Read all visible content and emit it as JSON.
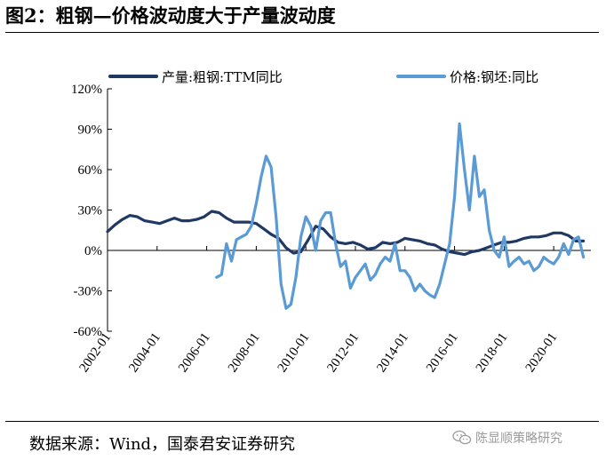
{
  "header": {
    "title": "图2：粗钢—价格波动度大于产量波动度"
  },
  "footer": {
    "source": "数据来源：Wind，国泰君安证券研究",
    "watermark": "陈显顺策略研究",
    "watermark_icon": "wechat-icon"
  },
  "chart_data": {
    "type": "line",
    "title": "图2：粗钢—价格波动度大于产量波动度",
    "xlabel": "",
    "ylabel": "",
    "xlim": [
      2002.0,
      2021.5
    ],
    "ylim": [
      -60,
      120
    ],
    "y_ticks": [
      -60,
      -30,
      0,
      30,
      60,
      90,
      120
    ],
    "y_tick_labels": [
      "-60%",
      "-30%",
      "0%",
      "30%",
      "60%",
      "90%",
      "120%"
    ],
    "x_tick_values": [
      2002,
      2004,
      2006,
      2008,
      2010,
      2012,
      2014,
      2016,
      2018,
      2020
    ],
    "x_tick_labels": [
      "2002-01",
      "2004-01",
      "2006-01",
      "2008-01",
      "2010-01",
      "2012-01",
      "2014-01",
      "2016-01",
      "2018-01",
      "2020-01"
    ],
    "grid": false,
    "legend_position": "top",
    "series": [
      {
        "name": "产量:粗钢:TTM同比",
        "color": "#1f3864",
        "x": [
          2002.0,
          2002.3,
          2002.6,
          2002.9,
          2003.2,
          2003.5,
          2003.8,
          2004.1,
          2004.4,
          2004.7,
          2005.0,
          2005.3,
          2005.6,
          2005.9,
          2006.2,
          2006.5,
          2006.8,
          2007.1,
          2007.4,
          2007.7,
          2008.0,
          2008.3,
          2008.6,
          2008.9,
          2009.2,
          2009.5,
          2009.8,
          2010.1,
          2010.4,
          2010.7,
          2011.0,
          2011.3,
          2011.6,
          2011.9,
          2012.2,
          2012.5,
          2012.8,
          2013.1,
          2013.4,
          2013.7,
          2014.0,
          2014.3,
          2014.6,
          2014.9,
          2015.2,
          2015.5,
          2015.8,
          2016.1,
          2016.4,
          2016.7,
          2017.0,
          2017.3,
          2017.6,
          2017.9,
          2018.2,
          2018.5,
          2018.8,
          2019.1,
          2019.4,
          2019.7,
          2020.0,
          2020.3,
          2020.6,
          2020.9,
          2021.2
        ],
        "values": [
          14,
          19,
          23,
          26,
          25,
          22,
          21,
          20,
          22,
          24,
          22,
          22,
          23,
          25,
          29,
          28,
          24,
          21,
          21,
          21,
          20,
          16,
          12,
          9,
          2,
          -2,
          -1,
          8,
          18,
          16,
          10,
          6,
          5,
          6,
          4,
          1,
          2,
          6,
          5,
          6,
          9,
          8,
          7,
          5,
          4,
          1,
          -1,
          -2,
          -3,
          -1,
          0,
          2,
          4,
          6,
          6,
          7,
          9,
          10,
          10,
          11,
          13,
          13,
          11,
          7,
          7
        ]
      },
      {
        "name": "价格:钢坯:同比",
        "color": "#5b9bd5",
        "x": [
          2006.4,
          2006.6,
          2006.8,
          2007.0,
          2007.2,
          2007.4,
          2007.6,
          2007.8,
          2008.0,
          2008.2,
          2008.4,
          2008.6,
          2008.8,
          2009.0,
          2009.2,
          2009.4,
          2009.6,
          2009.8,
          2010.0,
          2010.2,
          2010.4,
          2010.6,
          2010.8,
          2011.0,
          2011.2,
          2011.4,
          2011.6,
          2011.8,
          2012.0,
          2012.2,
          2012.4,
          2012.6,
          2012.8,
          2013.0,
          2013.2,
          2013.4,
          2013.6,
          2013.8,
          2014.0,
          2014.2,
          2014.4,
          2014.6,
          2014.8,
          2015.0,
          2015.2,
          2015.4,
          2015.6,
          2015.8,
          2016.0,
          2016.2,
          2016.4,
          2016.6,
          2016.8,
          2017.0,
          2017.2,
          2017.4,
          2017.6,
          2017.8,
          2018.0,
          2018.2,
          2018.4,
          2018.6,
          2018.8,
          2019.0,
          2019.2,
          2019.4,
          2019.6,
          2019.8,
          2020.0,
          2020.2,
          2020.4,
          2020.6,
          2020.8,
          2021.0,
          2021.2
        ],
        "values": [
          -20,
          -18,
          5,
          -8,
          8,
          10,
          12,
          18,
          35,
          55,
          70,
          62,
          25,
          -25,
          -43,
          -40,
          -20,
          10,
          25,
          18,
          0,
          22,
          28,
          28,
          5,
          -12,
          -8,
          -28,
          -20,
          -15,
          -10,
          -22,
          -18,
          -10,
          -5,
          -8,
          5,
          -15,
          -15,
          -20,
          -30,
          -25,
          -30,
          -33,
          -35,
          -25,
          -10,
          5,
          40,
          94,
          60,
          30,
          70,
          40,
          45,
          15,
          0,
          -5,
          10,
          -12,
          -8,
          -5,
          -10,
          -8,
          -15,
          -12,
          -5,
          -8,
          -10,
          -5,
          5,
          -3,
          8,
          10,
          -5
        ]
      }
    ]
  }
}
